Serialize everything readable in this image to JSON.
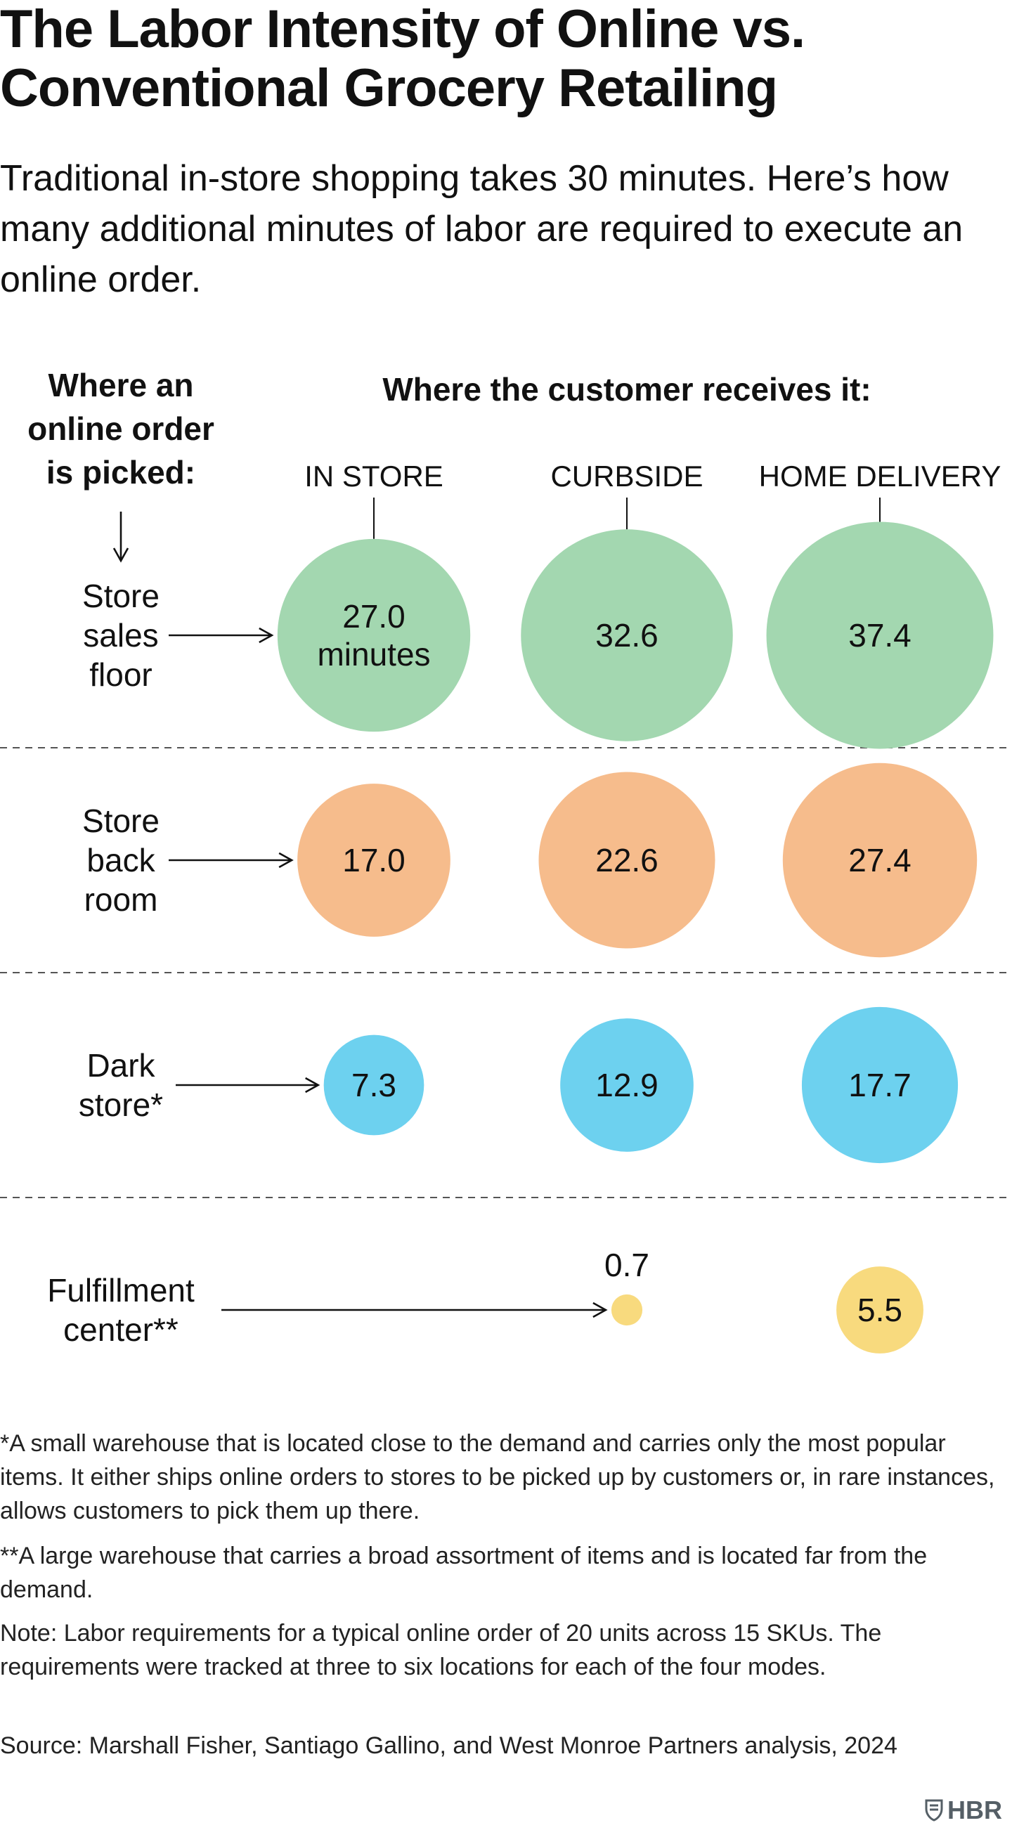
{
  "title": "The Labor Intensity of Online vs. Conventional Grocery Retailing",
  "subtitle": "Traditional in-store shopping takes 30 minutes. Here’s how many additional minutes of labor are required to execute an online order.",
  "row_axis_label": [
    "Where an",
    "online order",
    "is picked:"
  ],
  "column_axis_label": "Where the customer receives it:",
  "colors": {
    "store_sales_floor": "#a3d7b0",
    "store_back_room": "#f6bc8c",
    "dark_store": "#6dd1ef",
    "fulfillment_center": "#f8da7e",
    "divider": "#555555",
    "text": "#111111"
  },
  "chart_data": {
    "type": "bubble-matrix",
    "columns": [
      "IN STORE",
      "CURBSIDE",
      "HOME DELIVERY"
    ],
    "rows": [
      {
        "key": "store_sales_floor",
        "label": [
          "Store",
          "sales",
          "floor"
        ],
        "values": [
          27.0,
          32.6,
          37.4
        ],
        "value_labels": [
          [
            "27.0",
            "minutes"
          ],
          [
            "32.6"
          ],
          [
            "37.4"
          ]
        ]
      },
      {
        "key": "store_back_room",
        "label": [
          "Store",
          "back",
          "room"
        ],
        "values": [
          17.0,
          22.6,
          27.4
        ],
        "value_labels": [
          [
            "17.0"
          ],
          [
            "22.6"
          ],
          [
            "27.4"
          ]
        ]
      },
      {
        "key": "dark_store",
        "label": [
          "Dark",
          "store*"
        ],
        "values": [
          7.3,
          12.9,
          17.7
        ],
        "value_labels": [
          [
            "7.3"
          ],
          [
            "12.9"
          ],
          [
            "17.7"
          ]
        ]
      },
      {
        "key": "fulfillment_center",
        "label": [
          "Fulfillment",
          "center**"
        ],
        "values": [
          null,
          0.7,
          5.5
        ],
        "value_labels": [
          [],
          [
            "0.7"
          ],
          [
            "5.5"
          ]
        ]
      }
    ],
    "unit": "minutes"
  },
  "footnotes": {
    "dark_store": "*A small warehouse that is located close to the demand and carries only the most popular items. It either ships online orders to stores to be picked up by customers or, in rare instances, allows customers to pick them up there.",
    "fulfillment_center": "**A large warehouse that carries a broad assortment of items and is located far from the demand.",
    "note": "Note: Labor requirements for a typical online order of 20 units across 15 SKUs. The requirements were tracked at three to six locations for each of the four modes.",
    "source": "Source: Marshall Fisher, Santiago Gallino, and West Monroe Partners analysis, 2024"
  },
  "logo": {
    "text": "HBR",
    "icon": "hbr-shield-icon"
  }
}
